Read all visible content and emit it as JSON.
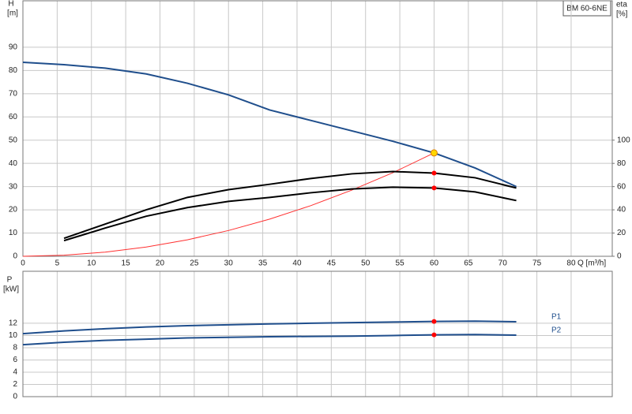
{
  "chart_data": [
    {
      "type": "line",
      "annotation": "BM 60-6NE",
      "ylabel": "H",
      "yunit": "[m]",
      "y2label": "eta",
      "y2unit": "[%]",
      "xlabel": "Q [m³/h]",
      "xlim": [
        0,
        86
      ],
      "xticks": [
        0,
        5,
        10,
        15,
        20,
        25,
        30,
        35,
        40,
        45,
        50,
        55,
        60,
        65,
        70,
        75,
        80
      ],
      "ylim": [
        0,
        110
      ],
      "yticks": [
        0,
        10,
        20,
        30,
        40,
        50,
        60,
        70,
        80,
        90
      ],
      "y2lim": [
        0,
        220
      ],
      "y2ticks": [
        0,
        20,
        40,
        60,
        80,
        100
      ],
      "grid": true,
      "x": [
        0,
        6,
        12,
        18,
        24,
        30,
        36,
        42,
        48,
        54,
        60,
        66,
        72
      ],
      "series": [
        {
          "color": "#1f4e8c",
          "values": [
            83.5,
            82.5,
            81,
            78.5,
            74.5,
            69.5,
            63,
            58.5,
            54,
            49.5,
            44.5,
            38,
            30
          ]
        },
        {
          "color": "#ff3030",
          "values": [
            0,
            0.45,
            1.8,
            4,
            7.1,
            11.1,
            16,
            21.8,
            28.5,
            36,
            44.5,
            null,
            null
          ]
        },
        {
          "color": "#000000",
          "axis": "y2",
          "values": [
            null,
            15.5,
            27.7,
            40,
            50.7,
            57.4,
            62,
            67,
            71,
            73,
            71.6,
            67.6,
            58.8
          ]
        },
        {
          "color": "#000000",
          "axis": "y2",
          "values": [
            null,
            13.5,
            24.3,
            34.5,
            41.9,
            47.3,
            50.7,
            54.7,
            58,
            59.5,
            58.8,
            55.4,
            48
          ]
        }
      ],
      "duty_points": [
        {
          "x": 60,
          "value": 44.5,
          "color": "#ffd700"
        },
        {
          "x": 60,
          "value": 71.6,
          "axis": "y2",
          "color": "#ff0000"
        },
        {
          "x": 60,
          "value": 58.8,
          "axis": "y2",
          "color": "#ff0000"
        }
      ]
    },
    {
      "type": "line",
      "ylabel": "P",
      "yunit": "[kW]",
      "xlim": [
        0,
        86
      ],
      "xticks": [
        0,
        5,
        10,
        15,
        20,
        25,
        30,
        35,
        40,
        45,
        50,
        55,
        60,
        65,
        70,
        75,
        80
      ],
      "ylim": [
        0,
        20.5
      ],
      "yticks": [
        0,
        2,
        4,
        6,
        8,
        10,
        12
      ],
      "grid": true,
      "x": [
        0,
        6,
        12,
        18,
        24,
        30,
        36,
        42,
        48,
        54,
        60,
        66,
        72
      ],
      "series": [
        {
          "name": "P1",
          "color": "#1f4e8c",
          "values": [
            10.3,
            10.75,
            11.1,
            11.4,
            11.6,
            11.75,
            11.9,
            12.0,
            12.1,
            12.2,
            12.3,
            12.35,
            12.25
          ]
        },
        {
          "name": "P2",
          "color": "#1f4e8c",
          "values": [
            8.5,
            8.9,
            9.2,
            9.4,
            9.6,
            9.7,
            9.8,
            9.85,
            9.9,
            10.0,
            10.1,
            10.15,
            10.05
          ]
        }
      ],
      "duty_points": [
        {
          "x": 60,
          "value": 12.3,
          "color": "#ff0000"
        },
        {
          "x": 60,
          "value": 10.1,
          "color": "#ff0000"
        }
      ]
    }
  ]
}
